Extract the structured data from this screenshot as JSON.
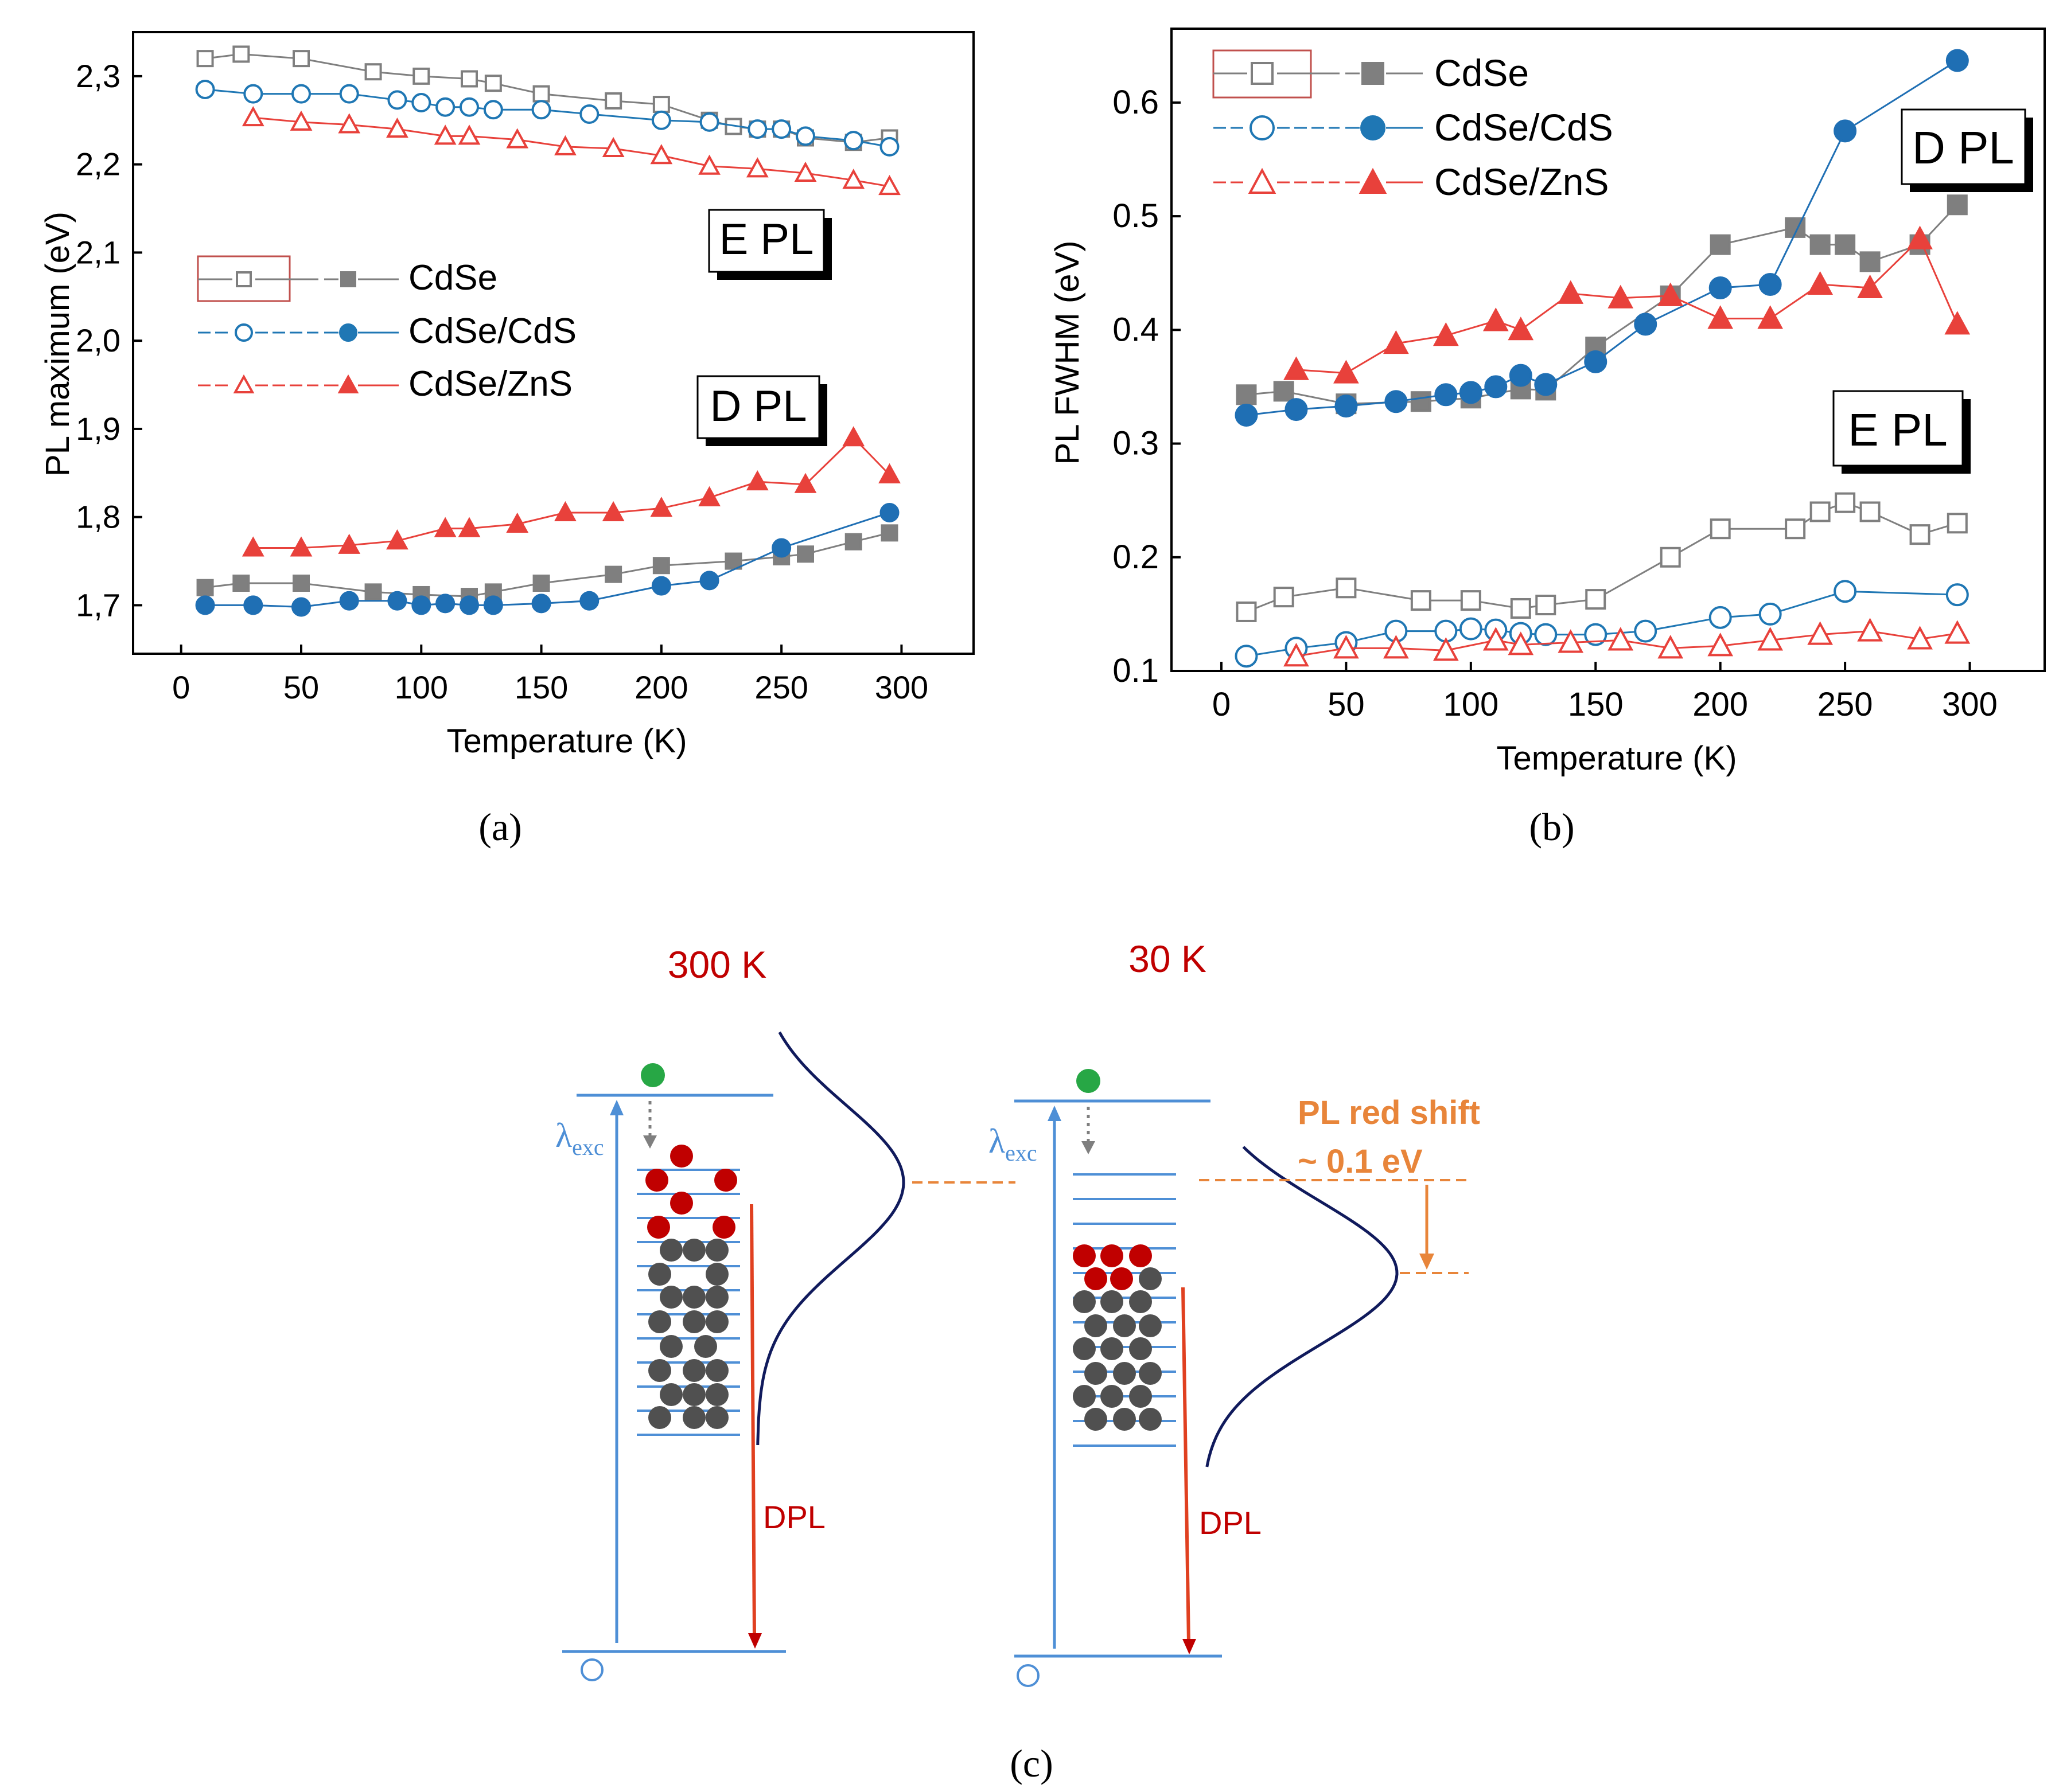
{
  "chart_data": [
    {
      "panel": "(a)",
      "type": "scatter",
      "xlabel": "Temperature (K)",
      "ylabel": "PL maximum (eV)",
      "xlim": [
        -20,
        330
      ],
      "ylim": [
        1.645,
        2.35
      ],
      "xticks": [
        0,
        50,
        100,
        150,
        200,
        250,
        300
      ],
      "xtick_labels": [
        "0",
        "50",
        "100",
        "150",
        "200",
        "250",
        "300"
      ],
      "yticks": [
        1.7,
        1.8,
        1.9,
        2.0,
        2.1,
        2.2,
        2.3
      ],
      "ytick_labels": [
        "1,7",
        "1,8",
        "1,9",
        "2,0",
        "2,1",
        "2,2",
        "2,3"
      ],
      "tags": {
        "upper": "E PL",
        "lower": "D PL"
      },
      "legend": [
        "CdSe",
        "CdSe/CdS",
        "CdSe/ZnS"
      ],
      "series": [
        {
          "name": "CdSe",
          "group": "E PL",
          "marker": "square",
          "filled": false,
          "color": "#7f7f7f",
          "x": [
            10,
            25,
            50,
            80,
            100,
            120,
            130,
            150,
            180,
            200,
            220,
            230,
            240,
            250,
            260,
            280,
            295
          ],
          "y": [
            2.32,
            2.325,
            2.32,
            2.305,
            2.3,
            2.297,
            2.292,
            2.28,
            2.272,
            2.268,
            2.25,
            2.243,
            2.24,
            2.24,
            2.23,
            2.225,
            2.23
          ]
        },
        {
          "name": "CdSe/CdS",
          "group": "E PL",
          "marker": "circle",
          "filled": false,
          "color": "#1f77b4",
          "x": [
            10,
            30,
            50,
            70,
            90,
            100,
            110,
            120,
            130,
            150,
            170,
            200,
            220,
            240,
            250,
            260,
            280,
            295
          ],
          "y": [
            2.285,
            2.28,
            2.28,
            2.28,
            2.273,
            2.27,
            2.265,
            2.265,
            2.262,
            2.262,
            2.257,
            2.25,
            2.248,
            2.24,
            2.24,
            2.232,
            2.227,
            2.22
          ]
        },
        {
          "name": "CdSe/ZnS",
          "group": "E PL",
          "marker": "triangle",
          "filled": false,
          "color": "#e8413b",
          "x": [
            30,
            50,
            70,
            90,
            110,
            120,
            140,
            160,
            180,
            200,
            220,
            240,
            260,
            280,
            295
          ],
          "y": [
            2.253,
            2.248,
            2.245,
            2.24,
            2.232,
            2.232,
            2.228,
            2.22,
            2.218,
            2.21,
            2.198,
            2.195,
            2.19,
            2.182,
            2.175
          ]
        },
        {
          "name": "CdSe",
          "group": "D PL",
          "marker": "square",
          "filled": true,
          "color": "#7f7f7f",
          "x": [
            10,
            25,
            50,
            80,
            100,
            120,
            130,
            150,
            180,
            200,
            230,
            250,
            260,
            280,
            295
          ],
          "y": [
            1.72,
            1.725,
            1.725,
            1.715,
            1.712,
            1.71,
            1.715,
            1.725,
            1.735,
            1.745,
            1.75,
            1.755,
            1.758,
            1.772,
            1.782
          ]
        },
        {
          "name": "CdSe/CdS",
          "group": "D PL",
          "marker": "circle",
          "filled": true,
          "color": "#1f6fb4",
          "x": [
            10,
            30,
            50,
            70,
            90,
            100,
            110,
            120,
            130,
            150,
            170,
            200,
            220,
            250,
            295
          ],
          "y": [
            1.7,
            1.7,
            1.698,
            1.705,
            1.705,
            1.7,
            1.702,
            1.7,
            1.7,
            1.702,
            1.705,
            1.722,
            1.728,
            1.765,
            1.805
          ]
        },
        {
          "name": "CdSe/ZnS",
          "group": "D PL",
          "marker": "triangle",
          "filled": true,
          "color": "#e8413b",
          "x": [
            30,
            50,
            70,
            90,
            110,
            120,
            140,
            160,
            180,
            200,
            220,
            240,
            260,
            280,
            295
          ],
          "y": [
            1.765,
            1.765,
            1.768,
            1.773,
            1.787,
            1.787,
            1.792,
            1.805,
            1.805,
            1.81,
            1.822,
            1.84,
            1.837,
            1.89,
            1.848
          ]
        }
      ]
    },
    {
      "panel": "(b)",
      "type": "scatter",
      "xlabel": "Temperature (K)",
      "ylabel": "PL FWHM (eV)",
      "xlim": [
        -20,
        330
      ],
      "ylim": [
        0.1,
        0.665
      ],
      "xticks": [
        0,
        50,
        100,
        150,
        200,
        250,
        300
      ],
      "xtick_labels": [
        "0",
        "50",
        "100",
        "150",
        "200",
        "250",
        "300"
      ],
      "yticks": [
        0.1,
        0.2,
        0.3,
        0.4,
        0.5,
        0.6
      ],
      "ytick_labels": [
        "0.1",
        "0.2",
        "0.3",
        "0.4",
        "0.5",
        "0.6"
      ],
      "tags": {
        "upper": "D PL",
        "lower": "E PL"
      },
      "legend": [
        "CdSe",
        "CdSe/CdS",
        "CdSe/ZnS"
      ],
      "series": [
        {
          "name": "CdSe",
          "group": "E PL",
          "marker": "square",
          "filled": false,
          "color": "#7f7f7f",
          "x": [
            10,
            25,
            50,
            80,
            100,
            120,
            130,
            150,
            180,
            200,
            230,
            240,
            250,
            260,
            280,
            295
          ],
          "y": [
            0.152,
            0.165,
            0.173,
            0.162,
            0.162,
            0.155,
            0.158,
            0.163,
            0.2,
            0.225,
            0.225,
            0.24,
            0.248,
            0.24,
            0.22,
            0.23
          ]
        },
        {
          "name": "CdSe/CdS",
          "group": "E PL",
          "marker": "circle",
          "filled": false,
          "color": "#1f77b4",
          "x": [
            10,
            30,
            50,
            70,
            90,
            100,
            110,
            120,
            130,
            150,
            170,
            200,
            220,
            250,
            295
          ],
          "y": [
            0.113,
            0.12,
            0.125,
            0.135,
            0.135,
            0.137,
            0.136,
            0.133,
            0.132,
            0.132,
            0.135,
            0.147,
            0.15,
            0.17,
            0.167
          ]
        },
        {
          "name": "CdSe/ZnS",
          "group": "E PL",
          "marker": "triangle",
          "filled": false,
          "color": "#e8413b",
          "x": [
            30,
            50,
            70,
            90,
            110,
            120,
            140,
            160,
            180,
            200,
            220,
            240,
            260,
            280,
            295
          ],
          "y": [
            0.113,
            0.12,
            0.12,
            0.118,
            0.127,
            0.123,
            0.125,
            0.127,
            0.12,
            0.122,
            0.127,
            0.132,
            0.135,
            0.128,
            0.133
          ]
        },
        {
          "name": "CdSe",
          "group": "D PL",
          "marker": "square",
          "filled": true,
          "color": "#7f7f7f",
          "x": [
            10,
            25,
            50,
            80,
            100,
            120,
            130,
            150,
            180,
            200,
            230,
            240,
            250,
            260,
            280,
            295
          ],
          "y": [
            0.343,
            0.346,
            0.335,
            0.337,
            0.34,
            0.348,
            0.347,
            0.385,
            0.43,
            0.475,
            0.49,
            0.475,
            0.475,
            0.46,
            0.475,
            0.51
          ]
        },
        {
          "name": "CdSe/CdS",
          "group": "D PL",
          "marker": "circle",
          "filled": true,
          "color": "#1f6fb4",
          "x": [
            10,
            30,
            50,
            70,
            90,
            100,
            110,
            120,
            130,
            150,
            170,
            200,
            220,
            250,
            295
          ],
          "y": [
            0.325,
            0.33,
            0.333,
            0.337,
            0.343,
            0.345,
            0.35,
            0.36,
            0.352,
            0.372,
            0.405,
            0.437,
            0.44,
            0.575,
            0.637
          ]
        },
        {
          "name": "CdSe/ZnS",
          "group": "D PL",
          "marker": "triangle",
          "filled": true,
          "color": "#e8413b",
          "x": [
            30,
            50,
            70,
            90,
            110,
            120,
            140,
            160,
            180,
            200,
            220,
            240,
            260,
            280,
            295
          ],
          "y": [
            0.365,
            0.362,
            0.388,
            0.395,
            0.408,
            0.4,
            0.432,
            0.428,
            0.43,
            0.41,
            0.41,
            0.44,
            0.437,
            0.48,
            0.405
          ]
        }
      ]
    }
  ],
  "panel_labels": {
    "a": "(a)",
    "b": "(b)",
    "c": "(c)"
  },
  "diagram": {
    "temp_300": "300 K",
    "temp_30": "30 K",
    "lambda_symbol": "λ",
    "lambda_subscript": "exc",
    "dpl_label": "DPL",
    "red_shift_line1": "PL red shift",
    "red_shift_line2": "~ 0.1 eV",
    "colors": {
      "level": "#4e8fd6",
      "electron": "#27a745",
      "red": "#c00000",
      "grey": "#505050",
      "orange": "#e8853a",
      "curve": "#101a5c"
    }
  }
}
